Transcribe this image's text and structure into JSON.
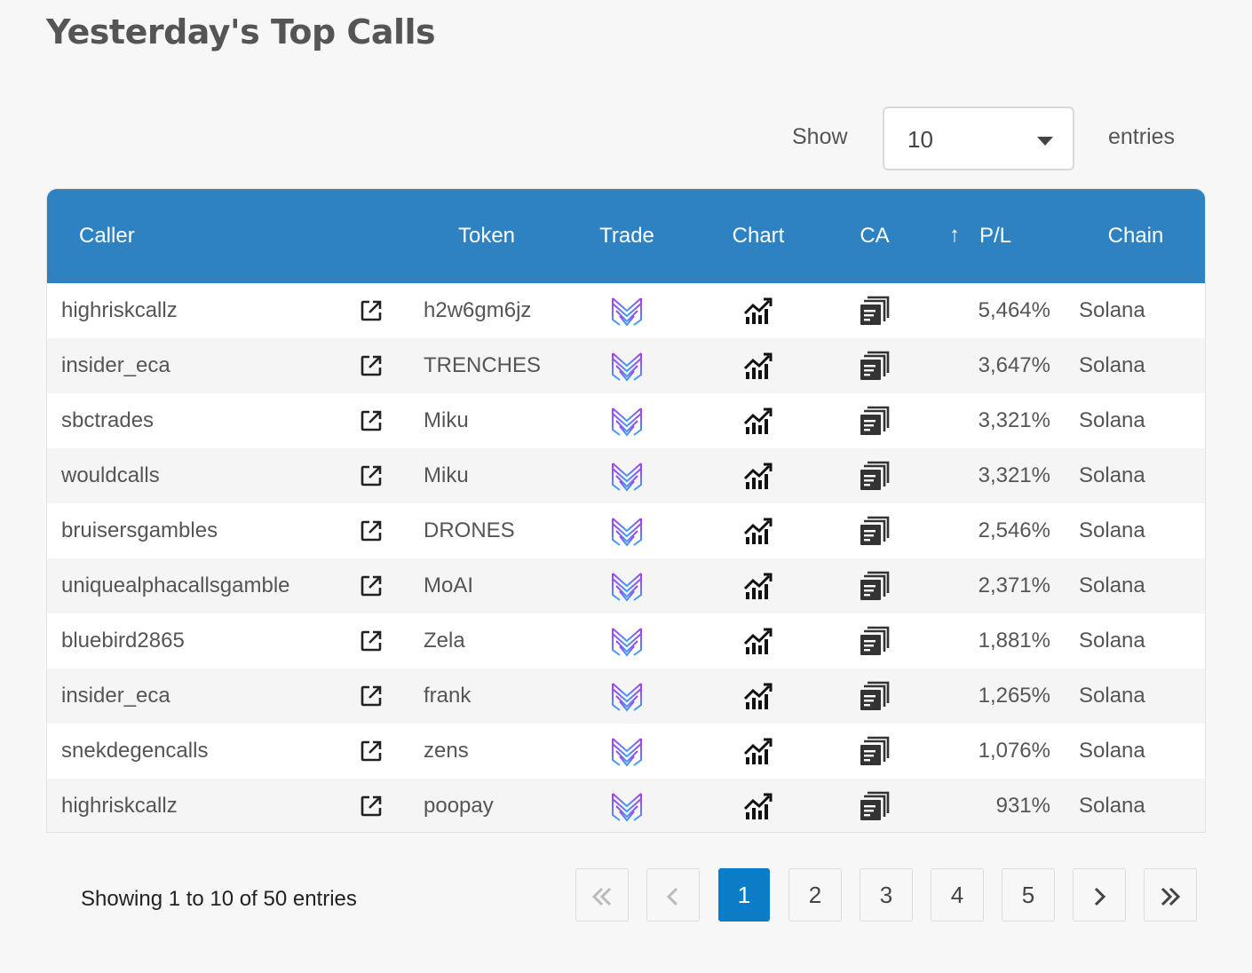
{
  "page": {
    "title": "Yesterday's Top Calls"
  },
  "length": {
    "show_label": "Show",
    "selected": "10",
    "entries_label": "entries"
  },
  "table": {
    "headers": {
      "caller": "Caller",
      "token": "Token",
      "trade": "Trade",
      "chart": "Chart",
      "ca": "CA",
      "pl": "P/L",
      "chain": "Chain"
    },
    "sort_indicator": "↑",
    "rows": [
      {
        "caller": "highriskcallz",
        "token": "h2w6gm6jz",
        "pl": "5,464%",
        "chain": "Solana"
      },
      {
        "caller": "insider_eca",
        "token": "TRENCHES",
        "pl": "3,647%",
        "chain": "Solana"
      },
      {
        "caller": "sbctrades",
        "token": "Miku",
        "pl": "3,321%",
        "chain": "Solana"
      },
      {
        "caller": "wouldcalls",
        "token": "Miku",
        "pl": "3,321%",
        "chain": "Solana"
      },
      {
        "caller": "bruisersgambles",
        "token": "DRONES",
        "pl": "2,546%",
        "chain": "Solana"
      },
      {
        "caller": "uniquealphacallsgamble",
        "token": "MoAI",
        "pl": "2,371%",
        "chain": "Solana"
      },
      {
        "caller": "bluebird2865",
        "token": "Zela",
        "pl": "1,881%",
        "chain": "Solana"
      },
      {
        "caller": "insider_eca",
        "token": "frank",
        "pl": "1,265%",
        "chain": "Solana"
      },
      {
        "caller": "snekdegencalls",
        "token": "zens",
        "pl": "1,076%",
        "chain": "Solana"
      },
      {
        "caller": "highriskcallz",
        "token": "poopay",
        "pl": "931%",
        "chain": "Solana"
      }
    ]
  },
  "info": "Showing 1 to 10 of 50 entries",
  "pagination": {
    "pages": [
      "1",
      "2",
      "3",
      "4",
      "5"
    ],
    "current": "1"
  },
  "icons": {
    "external": "external-link-icon",
    "trade": "trade-logo-icon",
    "chart": "chart-up-icon",
    "ca": "copy-address-icon",
    "first": "double-chevron-left-icon",
    "prev": "chevron-left-icon",
    "next": "chevron-right-icon",
    "last": "double-chevron-right-icon"
  },
  "colors": {
    "header_bg": "#2e82c2",
    "active_page": "#0b7dc7",
    "trade_gradient_start": "#a93cf0",
    "trade_gradient_end": "#3fa0f0"
  }
}
